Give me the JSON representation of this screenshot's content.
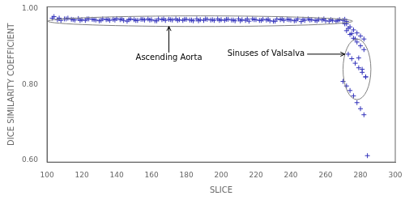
{
  "chart_data": {
    "type": "scatter",
    "xlabel": "SLICE",
    "ylabel": "DICE SIMILARITY COEFFICIENT",
    "xlim": [
      100,
      300
    ],
    "ylim": [
      0.595,
      1.005
    ],
    "xticks": [
      100,
      120,
      140,
      160,
      180,
      200,
      220,
      240,
      260,
      280,
      300
    ],
    "yticks": [
      {
        "value": 0.6,
        "label": "0.60"
      },
      {
        "value": 0.8,
        "label": "0.80"
      },
      {
        "value": 1.0,
        "label": "1.00"
      }
    ],
    "grid": false,
    "marker": "plus",
    "series": [
      {
        "color": "#3333bb",
        "x": [
          103,
          106,
          108,
          110,
          112,
          114,
          116,
          118,
          120,
          122,
          124,
          126,
          128,
          130,
          132,
          134,
          136,
          138,
          140,
          142,
          144,
          146,
          148,
          150,
          152,
          154,
          156,
          158,
          160,
          162,
          164,
          166,
          168,
          170,
          172,
          174,
          176,
          178,
          180,
          182,
          184,
          186,
          188,
          190,
          192,
          194,
          196,
          198,
          200,
          202,
          204,
          206,
          208,
          210,
          212,
          214,
          216,
          218,
          220,
          222,
          224,
          226,
          228,
          230,
          232,
          234,
          236,
          238,
          240,
          242,
          244,
          246,
          248,
          250,
          252,
          254,
          256,
          258,
          260,
          262,
          264,
          266,
          268,
          270,
          272,
          104,
          107,
          111,
          115,
          119,
          123,
          127,
          131,
          135,
          139,
          143,
          147,
          151,
          155,
          159,
          163,
          167,
          171,
          175,
          179,
          183,
          187,
          191,
          195,
          199,
          203,
          207,
          211,
          215,
          219,
          223,
          227,
          231,
          235,
          239,
          243,
          247,
          251,
          255,
          259,
          263,
          267,
          271
        ],
        "values": [
          0.975,
          0.971,
          0.969,
          0.973,
          0.975,
          0.972,
          0.97,
          0.974,
          0.971,
          0.969,
          0.973,
          0.972,
          0.97,
          0.968,
          0.973,
          0.971,
          0.969,
          0.972,
          0.974,
          0.971,
          0.969,
          0.967,
          0.973,
          0.971,
          0.969,
          0.972,
          0.97,
          0.973,
          0.971,
          0.968,
          0.973,
          0.971,
          0.969,
          0.972,
          0.97,
          0.973,
          0.971,
          0.969,
          0.972,
          0.97,
          0.968,
          0.973,
          0.971,
          0.969,
          0.972,
          0.97,
          0.969,
          0.973,
          0.971,
          0.969,
          0.972,
          0.97,
          0.968,
          0.973,
          0.971,
          0.969,
          0.967,
          0.973,
          0.971,
          0.969,
          0.972,
          0.97,
          0.968,
          0.967,
          0.973,
          0.971,
          0.969,
          0.972,
          0.97,
          0.968,
          0.973,
          0.966,
          0.969,
          0.973,
          0.971,
          0.969,
          0.972,
          0.97,
          0.968,
          0.967,
          0.969,
          0.967,
          0.971,
          0.969,
          0.966,
          0.979,
          0.975,
          0.973,
          0.971,
          0.969,
          0.973,
          0.971,
          0.969,
          0.972,
          0.97,
          0.973,
          0.971,
          0.969,
          0.972,
          0.97,
          0.968,
          0.973,
          0.971,
          0.969,
          0.972,
          0.97,
          0.968,
          0.973,
          0.971,
          0.969,
          0.972,
          0.97,
          0.968,
          0.973,
          0.971,
          0.969,
          0.972,
          0.967,
          0.973,
          0.971,
          0.969,
          0.972,
          0.97,
          0.968,
          0.973,
          0.971,
          0.969,
          0.972
        ]
      },
      {
        "color": "#3333bb",
        "x": [
          272,
          274,
          276,
          278,
          280,
          282,
          272,
          274,
          276,
          278,
          280,
          282,
          273,
          275,
          277,
          279,
          281,
          283,
          271,
          273,
          275,
          277,
          279,
          281,
          283,
          270,
          272,
          274,
          276,
          278,
          280,
          282
        ],
        "values": [
          0.96,
          0.952,
          0.944,
          0.936,
          0.928,
          0.92,
          0.942,
          0.932,
          0.922,
          0.912,
          0.902,
          0.892,
          0.88,
          0.868,
          0.856,
          0.844,
          0.832,
          0.82,
          0.96,
          0.948,
          0.934,
          0.92,
          0.87,
          0.84,
          0.82,
          0.808,
          0.796,
          0.784,
          0.77,
          0.752,
          0.736,
          0.72
        ]
      },
      {
        "color": "#3333bb",
        "x": [
          284
        ],
        "values": [
          0.612
        ]
      }
    ],
    "ellipses": [
      {
        "cx": 188,
        "cy": 0.967,
        "width": 175,
        "height": 0.028,
        "color": "gray"
      },
      {
        "cx": 278,
        "cy": 0.84,
        "width": 16,
        "height": 0.16,
        "color": "gray"
      }
    ],
    "annotations": [
      {
        "text": "Ascending Aorta",
        "xy": [
          170,
          0.953
        ],
        "xytext": [
          170,
          0.88
        ]
      },
      {
        "text": "Sinuses of Valsalva",
        "xy": [
          271,
          0.88
        ],
        "xytext": [
          248,
          0.88
        ]
      }
    ]
  }
}
